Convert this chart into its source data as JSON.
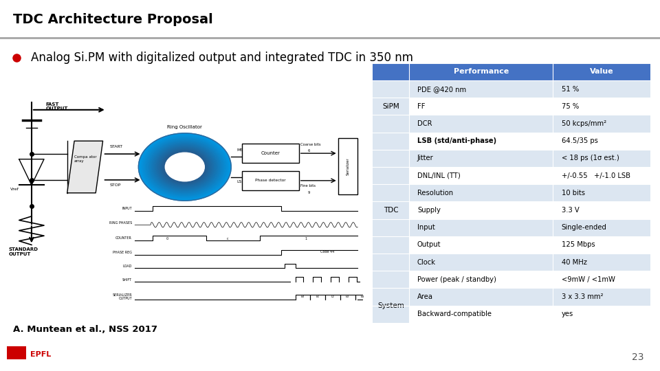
{
  "title": "TDC Architecture Proposal",
  "bullet_text": "Analog Si.PM with digitalized output and integrated TDC in 350 nm",
  "citation": "A. Muntean et al., NSS 2017",
  "page_number": "23",
  "title_bar_color": "#c0c0c0",
  "header_bg": "#4472c4",
  "header_text_color": "#ffffff",
  "row_alt_color": "#dce6f1",
  "row_white": "#ffffff",
  "bullet_color": "#cc0000",
  "table_data": [
    {
      "group": "",
      "performance": "Performance",
      "value": "Value",
      "header": true
    },
    {
      "group": "SiPM",
      "performance": "PDE @420 nm",
      "value": "51 %",
      "group_start": true,
      "group_rows": 3
    },
    {
      "group": "",
      "performance": "FF",
      "value": "75 %"
    },
    {
      "group": "",
      "performance": "DCR",
      "value": "50 kcps/mm²"
    },
    {
      "group": "TDC",
      "performance": "LSB (std/anti-phase)",
      "value": "64.5/35 ps",
      "group_start": true,
      "group_rows": 9,
      "bold_perf": true
    },
    {
      "group": "",
      "performance": "Jitter",
      "value": "< 18 ps (1σ est.)"
    },
    {
      "group": "",
      "performance": "DNL/INL (TT)",
      "value": "+/-0.55   +/-1.0 LSB"
    },
    {
      "group": "",
      "performance": "Resolution",
      "value": "10 bits"
    },
    {
      "group": "",
      "performance": "Supply",
      "value": "3.3 V"
    },
    {
      "group": "",
      "performance": "Input",
      "value": "Single-ended"
    },
    {
      "group": "",
      "performance": "Output",
      "value": "125 Mbps"
    },
    {
      "group": "",
      "performance": "Clock",
      "value": "40 MHz"
    },
    {
      "group": "",
      "performance": "Power (peak / standby)",
      "value": "<9mW / <1mW"
    },
    {
      "group": "System",
      "performance": "Area",
      "value": "3 x 3.3 mm²",
      "group_start": true,
      "group_rows": 2
    },
    {
      "group": "",
      "performance": "Backward-compatible",
      "value": "yes"
    }
  ]
}
